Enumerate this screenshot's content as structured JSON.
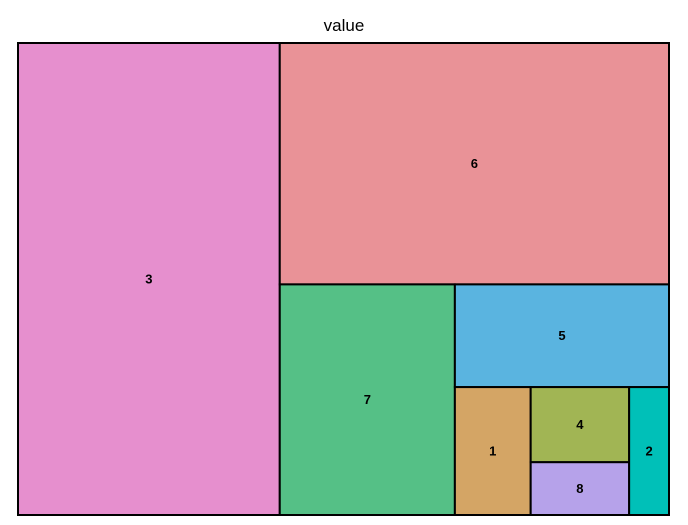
{
  "chart_data": {
    "type": "treemap",
    "title": "value",
    "tiles": [
      {
        "label": "3",
        "value": 123.6,
        "color": "#e68fce"
      },
      {
        "label": "6",
        "value": 94.0,
        "color": "#e99297"
      },
      {
        "label": "7",
        "value": 40.4,
        "color": "#55c086"
      },
      {
        "label": "5",
        "value": 22.0,
        "color": "#5ab4e0"
      },
      {
        "label": "1",
        "value": 9.7,
        "color": "#d4a565"
      },
      {
        "label": "4",
        "value": 7.4,
        "color": "#a1b554"
      },
      {
        "label": "8",
        "value": 5.2,
        "color": "#b6a2ea"
      },
      {
        "label": "2",
        "value": 5.1,
        "color": "#00c0b8"
      }
    ]
  }
}
